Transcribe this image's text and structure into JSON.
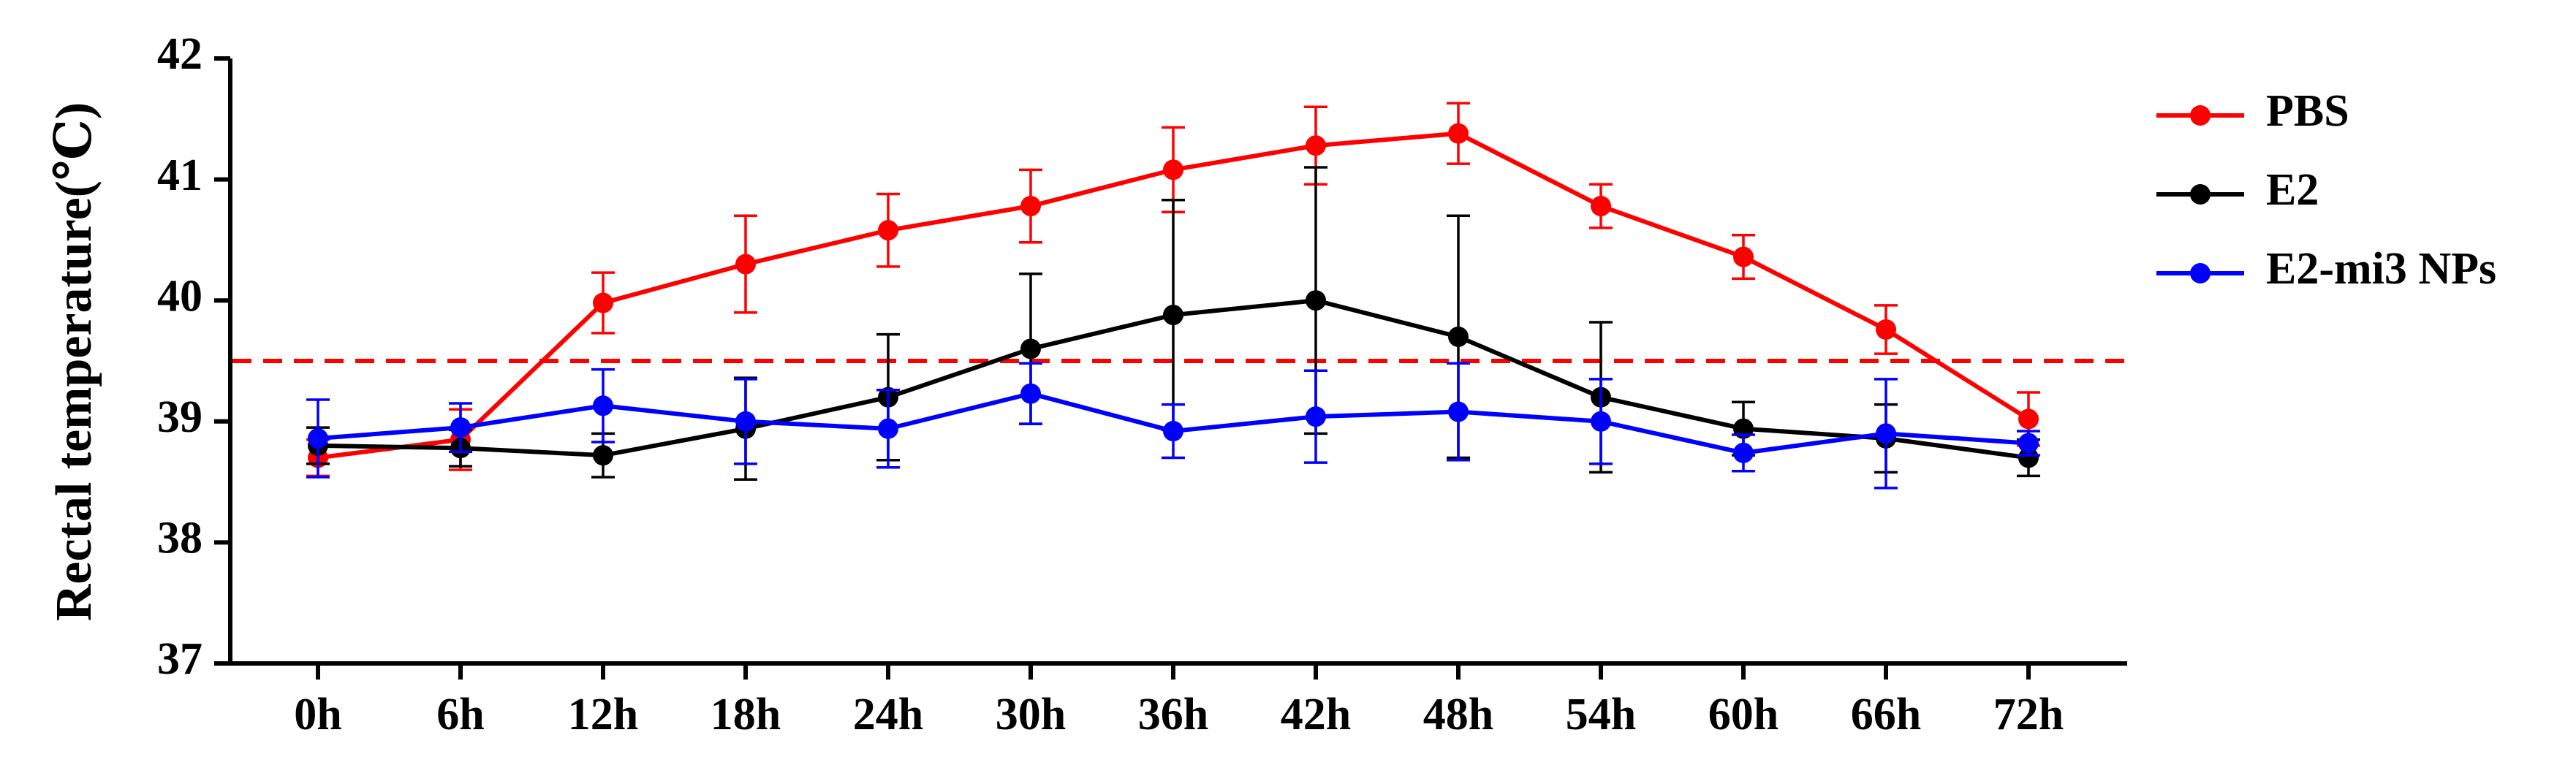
{
  "chart_data": {
    "type": "line",
    "title": "",
    "xlabel": "",
    "ylabel": "Rectal temperature(℃)",
    "categories": [
      "0h",
      "6h",
      "12h",
      "18h",
      "24h",
      "30h",
      "36h",
      "42h",
      "48h",
      "54h",
      "60h",
      "66h",
      "72h"
    ],
    "ylim": [
      37,
      42
    ],
    "yticks": [
      37,
      38,
      39,
      40,
      41,
      42
    ],
    "grid": false,
    "legend_position": "right",
    "threshold": {
      "value": 39.5,
      "color": "#ff0000",
      "style": "dashed"
    },
    "series": [
      {
        "name": "PBS",
        "color": "#ff0000",
        "values": [
          38.7,
          38.85,
          39.98,
          40.3,
          40.58,
          40.78,
          41.08,
          41.28,
          41.38,
          40.78,
          40.36,
          39.76,
          39.02
        ],
        "errors": [
          0.15,
          0.25,
          0.25,
          0.4,
          0.3,
          0.3,
          0.35,
          0.32,
          0.25,
          0.18,
          0.18,
          0.2,
          0.22
        ]
      },
      {
        "name": "E2",
        "color": "#000000",
        "values": [
          38.8,
          38.78,
          38.72,
          38.94,
          39.2,
          39.6,
          39.88,
          40.0,
          39.7,
          39.2,
          38.94,
          38.86,
          38.7
        ],
        "errors": [
          0.15,
          0.15,
          0.18,
          0.42,
          0.52,
          0.62,
          0.95,
          1.1,
          1.0,
          0.62,
          0.22,
          0.28,
          0.15
        ]
      },
      {
        "name": "E2-mi3 NPs",
        "color": "#0000ff",
        "values": [
          38.86,
          38.95,
          39.13,
          39.0,
          38.94,
          39.23,
          38.92,
          39.04,
          39.08,
          39.0,
          38.74,
          38.9,
          38.82
        ],
        "errors": [
          0.32,
          0.2,
          0.3,
          0.35,
          0.32,
          0.25,
          0.22,
          0.38,
          0.4,
          0.35,
          0.15,
          0.45,
          0.1
        ]
      }
    ]
  }
}
